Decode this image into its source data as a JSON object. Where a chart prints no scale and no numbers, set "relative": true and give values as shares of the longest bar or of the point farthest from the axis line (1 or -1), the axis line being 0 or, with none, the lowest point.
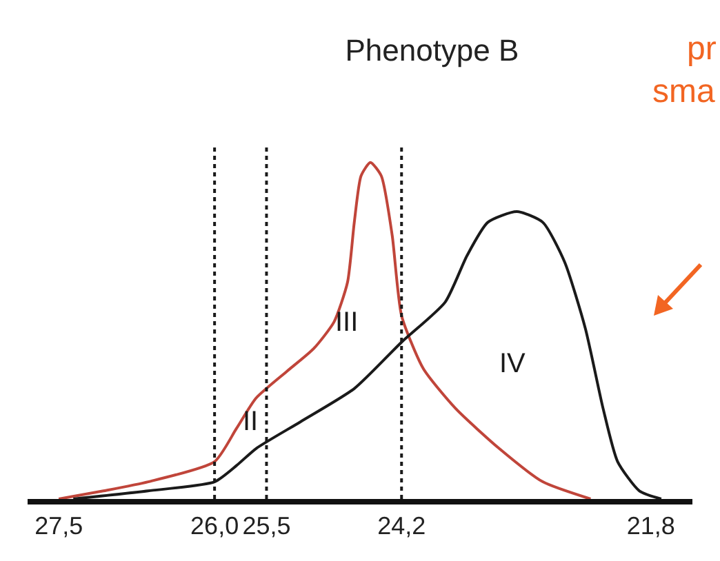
{
  "chart_data": {
    "type": "line",
    "title": "Phenotype B",
    "relative": true,
    "xlim": [
      27.8,
      21.4
    ],
    "xticks": [
      {
        "value": 27.5,
        "label": "27,5"
      },
      {
        "value": 26.0,
        "label": "26,0"
      },
      {
        "value": 25.5,
        "label": "25,5"
      },
      {
        "value": 24.2,
        "label": "24,2"
      },
      {
        "value": 21.8,
        "label": "21,8"
      }
    ],
    "tick_labels": "x",
    "grid": false,
    "marker": "none",
    "line_style": "solid",
    "series": [
      {
        "color": "#c0453a",
        "x": [
          27.5,
          27.07,
          26.64,
          26.0,
          25.79,
          25.6,
          25.305,
          25.045,
          24.85,
          24.72,
          24.655,
          24.59,
          24.5,
          24.395,
          24.29,
          24.2,
          23.99,
          23.68,
          23.26,
          22.84,
          22.38
        ],
        "values": [
          0,
          0.024,
          0.051,
          0.111,
          0.209,
          0.3,
          0.379,
          0.447,
          0.526,
          0.644,
          0.822,
          0.96,
          1,
          0.96,
          0.783,
          0.545,
          0.387,
          0.269,
          0.15,
          0.051,
          0
        ]
      },
      {
        "color": "#1a1a1a",
        "x": [
          27.36,
          26.64,
          26.0,
          25.79,
          25.6,
          25.175,
          24.655,
          24.2,
          23.78,
          23.57,
          23.37,
          23.09,
          22.84,
          22.63,
          22.43,
          22.26,
          22.12,
          21.91,
          21.7
        ],
        "values": [
          0,
          0.024,
          0.051,
          0.099,
          0.15,
          0.229,
          0.328,
          0.466,
          0.585,
          0.723,
          0.822,
          0.854,
          0.822,
          0.704,
          0.506,
          0.269,
          0.111,
          0.024,
          0
        ]
      }
    ],
    "ref_lines": [
      {
        "axis": "x",
        "value": 26.0,
        "color": "#1a1a1a",
        "line_style": "dotted"
      },
      {
        "axis": "x",
        "value": 25.5,
        "color": "#1a1a1a",
        "line_style": "dotted"
      },
      {
        "axis": "x",
        "value": 24.2,
        "color": "#1a1a1a",
        "line_style": "dotted"
      }
    ],
    "annotations": [
      {
        "text": "II",
        "x": 25.66,
        "y": 0.23
      },
      "III",
      "IV",
      "pr",
      "sma"
    ]
  }
}
